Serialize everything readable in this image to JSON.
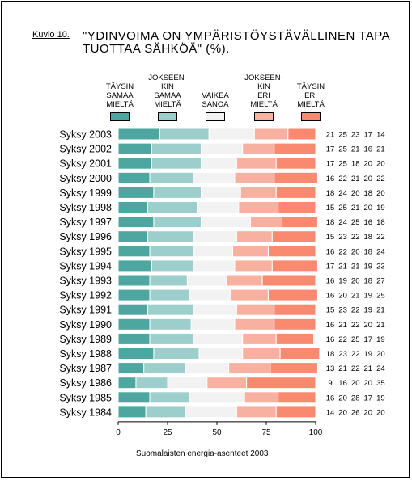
{
  "figure_label": "Kuvio 10.",
  "title_lines": [
    "\"YDINVOIMA ON YMPÄRISTÖYSTÄVÄLLINEN TAPA",
    "TUOTTAA SÄHKÖÄ\" (%)."
  ],
  "source": "Suomalaisten energia-asenteet 2003",
  "colors": [
    "#4ea6a0",
    "#9ccfcc",
    "#f2f2f2",
    "#f8b0a0",
    "#f98a70"
  ],
  "chart_data": {
    "type": "bar",
    "orientation": "horizontal",
    "stacked": true,
    "title": "\"YDINVOIMA ON YMPÄRISTÖYSTÄVÄLLINEN TAPA TUOTTAA SÄHKÖÄ\" (%).",
    "xlabel": "",
    "ylabel": "",
    "xlim": [
      0,
      100
    ],
    "xticks": [
      0,
      25,
      50,
      75,
      100
    ],
    "grid": false,
    "legend_position": "top",
    "categories": [
      "Syksy 2003",
      "Syksy 2002",
      "Syksy 2001",
      "Syksy 2000",
      "Syksy 1999",
      "Syksy 1998",
      "Syksy 1997",
      "Syksy 1996",
      "Syksy 1995",
      "Syksy 1994",
      "Syksy 1993",
      "Syksy 1992",
      "Syksy 1991",
      "Syksy 1990",
      "Syksy 1989",
      "Syksy 1988",
      "Syksy 1987",
      "Syksy 1986",
      "Syksy 1985",
      "Syksy 1984"
    ],
    "series": [
      {
        "name": "TÄYSIN SAMAA MIELTÄ",
        "values": [
          21,
          17,
          17,
          16,
          18,
          15,
          18,
          15,
          16,
          17,
          16,
          16,
          15,
          16,
          16,
          18,
          13,
          9,
          16,
          14
        ]
      },
      {
        "name": "JOKSEEN-KIN SAMAA MIELTÄ",
        "values": [
          25,
          25,
          25,
          22,
          24,
          25,
          24,
          23,
          22,
          21,
          19,
          20,
          23,
          21,
          22,
          23,
          21,
          16,
          20,
          20
        ]
      },
      {
        "name": "VAIKEA SANOA",
        "values": [
          23,
          21,
          18,
          21,
          20,
          21,
          25,
          22,
          20,
          21,
          20,
          21,
          22,
          22,
          25,
          22,
          22,
          20,
          28,
          26
        ]
      },
      {
        "name": "JOKSEEN-KIN ERI MIELTÄ",
        "values": [
          17,
          16,
          20,
          20,
          18,
          20,
          16,
          18,
          18,
          19,
          18,
          19,
          19,
          20,
          17,
          19,
          21,
          20,
          17,
          20
        ]
      },
      {
        "name": "TÄYSIN ERI MIELTÄ",
        "values": [
          14,
          21,
          20,
          22,
          20,
          19,
          18,
          22,
          24,
          23,
          27,
          25,
          21,
          21,
          19,
          20,
          24,
          35,
          19,
          20
        ]
      }
    ]
  }
}
